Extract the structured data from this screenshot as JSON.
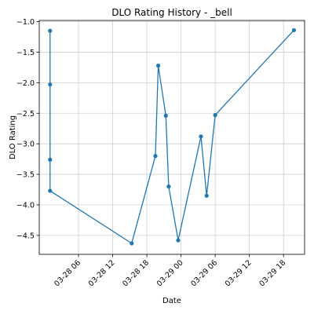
{
  "chart_data": {
    "type": "line",
    "title": "DLO Rating History - _bell",
    "xlabel": "Date",
    "ylabel": "DLO Rating",
    "grid": true,
    "line_color": "#1f77b4",
    "xlim": [
      "2025-03-27T23:06",
      "2025-03-29T21:42"
    ],
    "ylim": [
      -4.81,
      -0.98
    ],
    "x_ticks": [
      {
        "value": "2025-03-28T06:00",
        "label": "03-28 06"
      },
      {
        "value": "2025-03-28T12:00",
        "label": "03-28 12"
      },
      {
        "value": "2025-03-28T18:00",
        "label": "03-28 18"
      },
      {
        "value": "2025-03-29T00:00",
        "label": "03-29 00"
      },
      {
        "value": "2025-03-29T06:00",
        "label": "03-29 06"
      },
      {
        "value": "2025-03-29T12:00",
        "label": "03-29 12"
      },
      {
        "value": "2025-03-29T18:00",
        "label": "03-29 18"
      }
    ],
    "y_ticks": [
      {
        "value": -1.0,
        "label": "−1.0"
      },
      {
        "value": -1.5,
        "label": "−1.5"
      },
      {
        "value": -2.0,
        "label": "−2.0"
      },
      {
        "value": -2.5,
        "label": "−2.5"
      },
      {
        "value": -3.0,
        "label": "−3.0"
      },
      {
        "value": -3.5,
        "label": "−3.5"
      },
      {
        "value": -4.0,
        "label": "−4.0"
      },
      {
        "value": -4.5,
        "label": "−4.5"
      }
    ],
    "series": [
      {
        "points": [
          {
            "x": "2025-03-28T01:00",
            "y": -1.15
          },
          {
            "x": "2025-03-28T01:00",
            "y": -2.03
          },
          {
            "x": "2025-03-28T01:00",
            "y": -3.26
          },
          {
            "x": "2025-03-28T01:00",
            "y": -3.77
          },
          {
            "x": "2025-03-28T15:20",
            "y": -4.63
          },
          {
            "x": "2025-03-28T19:30",
            "y": -3.2
          },
          {
            "x": "2025-03-28T20:00",
            "y": -1.72
          },
          {
            "x": "2025-03-28T21:20",
            "y": -2.54
          },
          {
            "x": "2025-03-28T21:50",
            "y": -3.7
          },
          {
            "x": "2025-03-28T23:30",
            "y": -4.58
          },
          {
            "x": "2025-03-29T03:30",
            "y": -2.88
          },
          {
            "x": "2025-03-29T04:30",
            "y": -3.85
          },
          {
            "x": "2025-03-29T06:00",
            "y": -2.53
          },
          {
            "x": "2025-03-29T19:50",
            "y": -1.14
          }
        ]
      }
    ]
  }
}
